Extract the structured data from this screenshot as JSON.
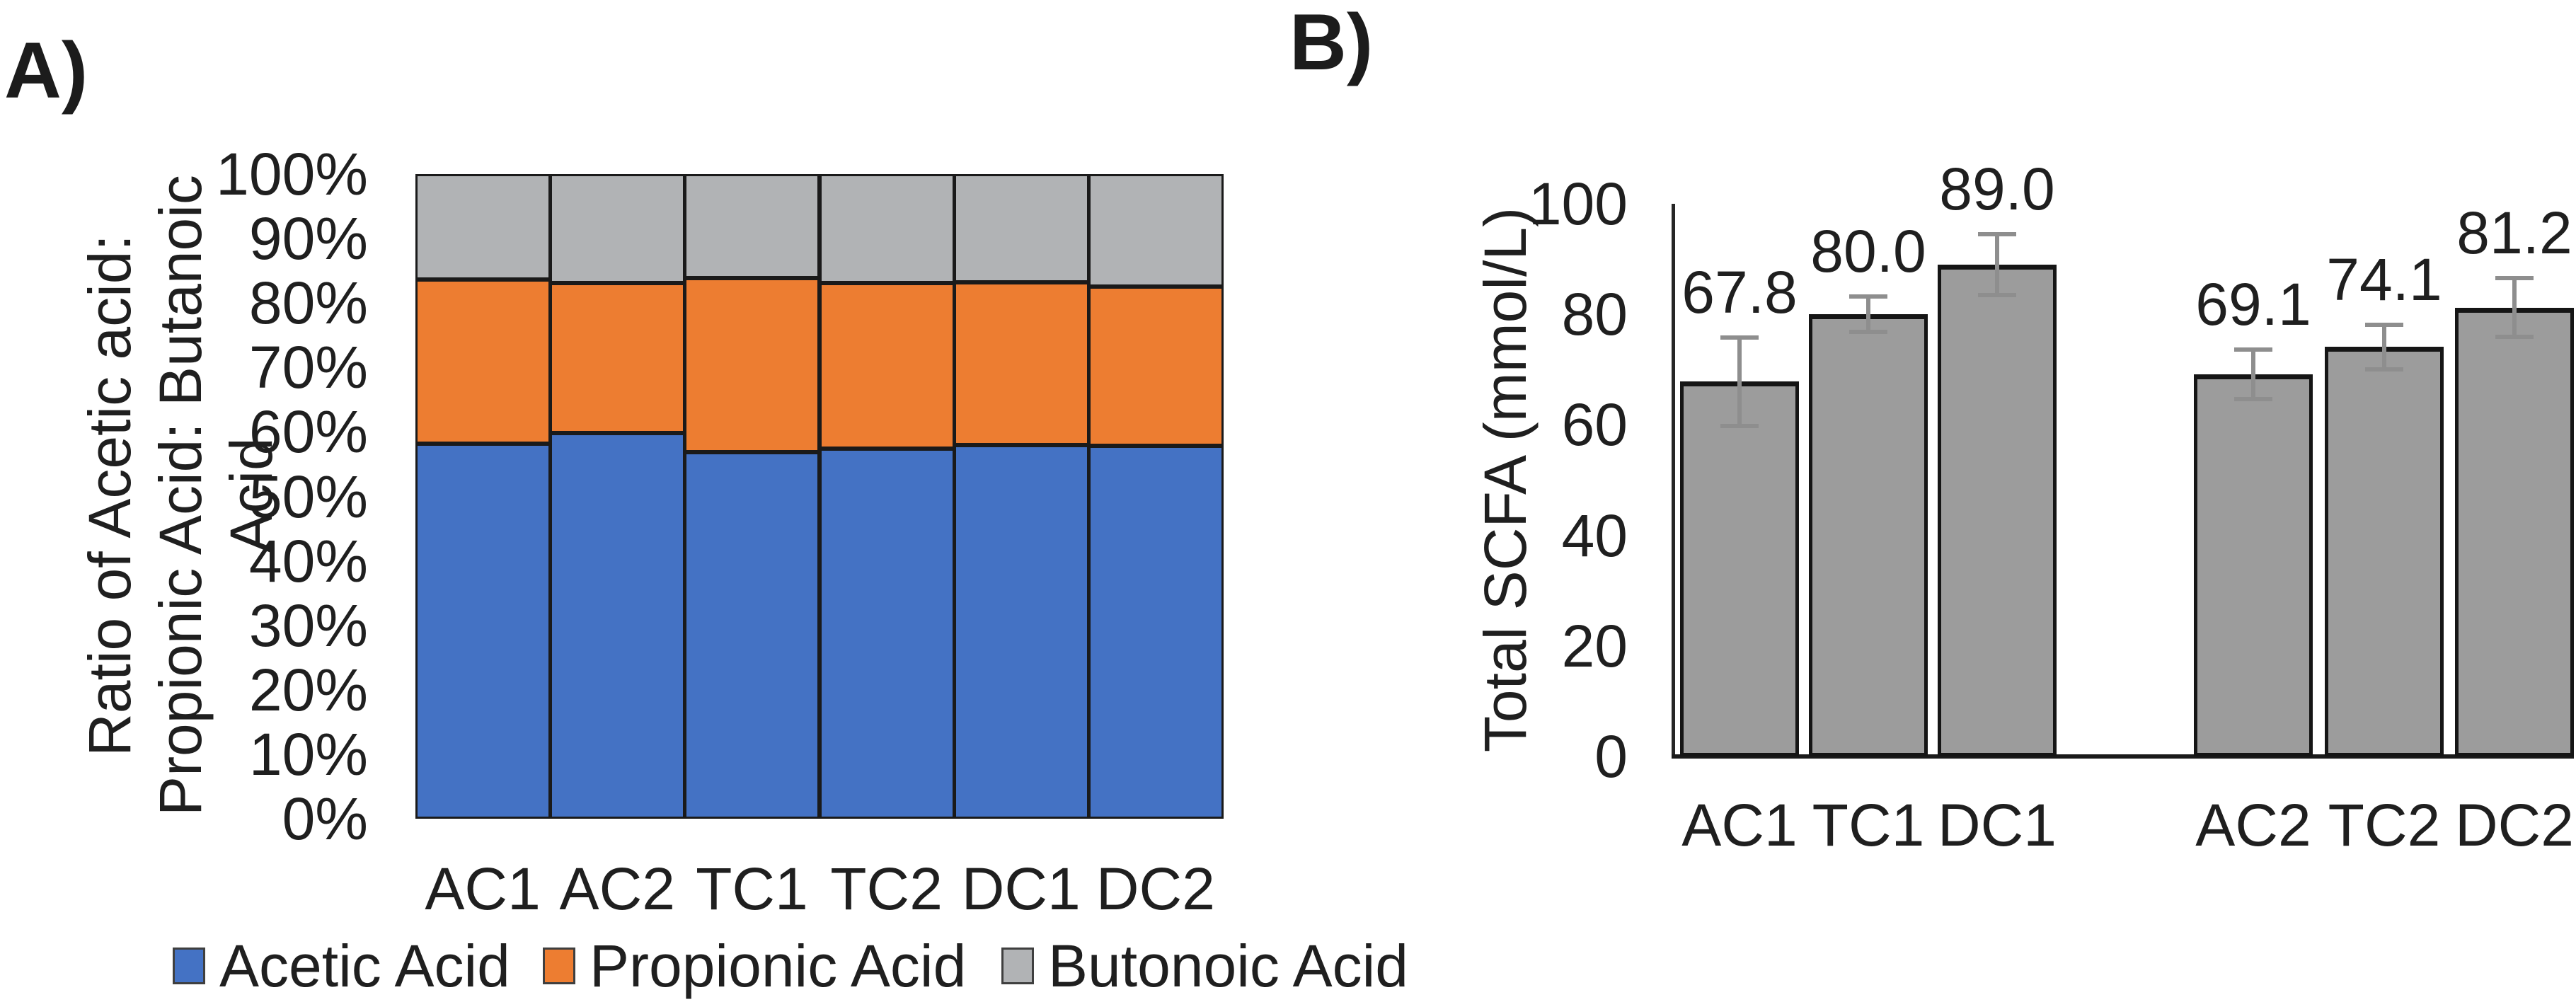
{
  "panels": {
    "a": {
      "label": "A)"
    },
    "b": {
      "label": "B)"
    }
  },
  "chart_data": [
    {
      "type": "bar",
      "subtype": "stacked-100-percent",
      "panel": "A",
      "ylabel_lines": [
        "Ratio of Acetic acid:",
        "Propionic Acid: Butanoic Acid"
      ],
      "categories": [
        "AC1",
        "AC2",
        "TC1",
        "TC2",
        "DC1",
        "DC2"
      ],
      "series": [
        {
          "name": "Acetic Acid",
          "color": "#4472c4",
          "values": [
            58.2,
            59.8,
            56.9,
            57.4,
            58.0,
            57.9
          ]
        },
        {
          "name": "Propionic Acid",
          "color": "#ed7d31",
          "values": [
            25.4,
            23.3,
            27.0,
            25.7,
            25.2,
            24.6
          ]
        },
        {
          "name": "Butonoic Acid",
          "color": "#b1b3b5",
          "values": [
            16.4,
            16.9,
            16.1,
            16.9,
            16.8,
            17.5
          ]
        }
      ],
      "y_ticks": [
        "0%",
        "10%",
        "20%",
        "30%",
        "40%",
        "50%",
        "60%",
        "70%",
        "80%",
        "90%",
        "100%"
      ],
      "ylim": [
        0,
        100
      ],
      "grid": false,
      "legend_position": "bottom",
      "bar_border_color": "#1a1a1a"
    },
    {
      "type": "bar",
      "panel": "B",
      "ylabel": "Total SCFA (mmol/L)",
      "categories": [
        "AC1",
        "TC1",
        "DC1",
        "AC2",
        "TC2",
        "DC2"
      ],
      "groups": [
        [
          "AC1",
          "TC1",
          "DC1"
        ],
        [
          "AC2",
          "TC2",
          "DC2"
        ]
      ],
      "values": [
        67.8,
        80.0,
        89.0,
        69.1,
        74.1,
        81.2
      ],
      "value_labels": [
        "67.8",
        "80.0",
        "89.0",
        "69.1",
        "74.1",
        "81.2"
      ],
      "error_bars": [
        8.0,
        3.2,
        5.5,
        4.5,
        4.0,
        5.3
      ],
      "y_ticks": [
        0,
        20,
        40,
        60,
        80,
        100
      ],
      "ylim": [
        0,
        100
      ],
      "grid": false,
      "bar_color": "#9c9c9c",
      "bar_border_color": "#151515",
      "error_bar_color": "#8e8e8e"
    }
  ]
}
